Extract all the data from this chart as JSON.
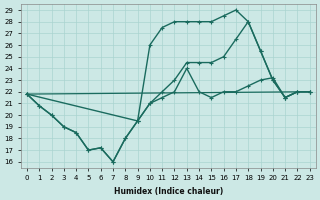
{
  "xlabel": "Humidex (Indice chaleur)",
  "bg_color": "#cce8e5",
  "grid_color": "#aad4d0",
  "line_color": "#1a6b5e",
  "xlim": [
    -0.5,
    23.5
  ],
  "ylim": [
    15.5,
    29.5
  ],
  "xticks": [
    0,
    1,
    2,
    3,
    4,
    5,
    6,
    7,
    8,
    9,
    10,
    11,
    12,
    13,
    14,
    15,
    16,
    17,
    18,
    19,
    20,
    21,
    22,
    23
  ],
  "yticks": [
    16,
    17,
    18,
    19,
    20,
    21,
    22,
    23,
    24,
    25,
    26,
    27,
    28,
    29
  ],
  "series": [
    {
      "x": [
        0,
        23
      ],
      "y": [
        21.8,
        22.0
      ],
      "has_markers": false,
      "linewidth": 0.9
    },
    {
      "x": [
        0,
        1,
        2,
        3,
        4,
        5,
        6,
        7,
        8,
        9,
        10,
        11,
        12,
        13,
        14,
        15,
        16,
        17,
        18,
        19,
        20,
        21,
        22,
        23
      ],
      "y": [
        21.8,
        20.8,
        20.0,
        19.0,
        18.5,
        17.0,
        17.2,
        16.0,
        18.0,
        19.5,
        21.0,
        21.5,
        22.0,
        24.0,
        22.0,
        21.5,
        22.0,
        22.0,
        22.5,
        23.0,
        23.2,
        21.5,
        22.0,
        22.0
      ],
      "has_markers": true,
      "linewidth": 1.0
    },
    {
      "x": [
        0,
        1,
        2,
        3,
        4,
        5,
        6,
        7,
        8,
        9,
        10,
        11,
        12,
        13,
        14,
        15,
        16,
        17,
        18,
        19,
        20,
        21,
        22,
        23
      ],
      "y": [
        21.8,
        20.8,
        20.0,
        19.0,
        18.5,
        17.0,
        17.2,
        16.0,
        18.0,
        19.5,
        26.0,
        27.5,
        28.0,
        28.0,
        28.0,
        28.0,
        28.5,
        29.0,
        28.0,
        25.5,
        23.0,
        21.5,
        22.0,
        22.0
      ],
      "has_markers": true,
      "linewidth": 1.0
    },
    {
      "x": [
        0,
        9,
        10,
        11,
        12,
        13,
        14,
        15,
        16,
        17,
        18,
        19,
        20,
        21,
        22,
        23
      ],
      "y": [
        21.8,
        19.5,
        21.0,
        22.0,
        23.0,
        24.5,
        24.5,
        24.5,
        25.0,
        26.5,
        28.0,
        25.5,
        23.0,
        21.5,
        22.0,
        22.0
      ],
      "has_markers": true,
      "linewidth": 1.0
    }
  ]
}
